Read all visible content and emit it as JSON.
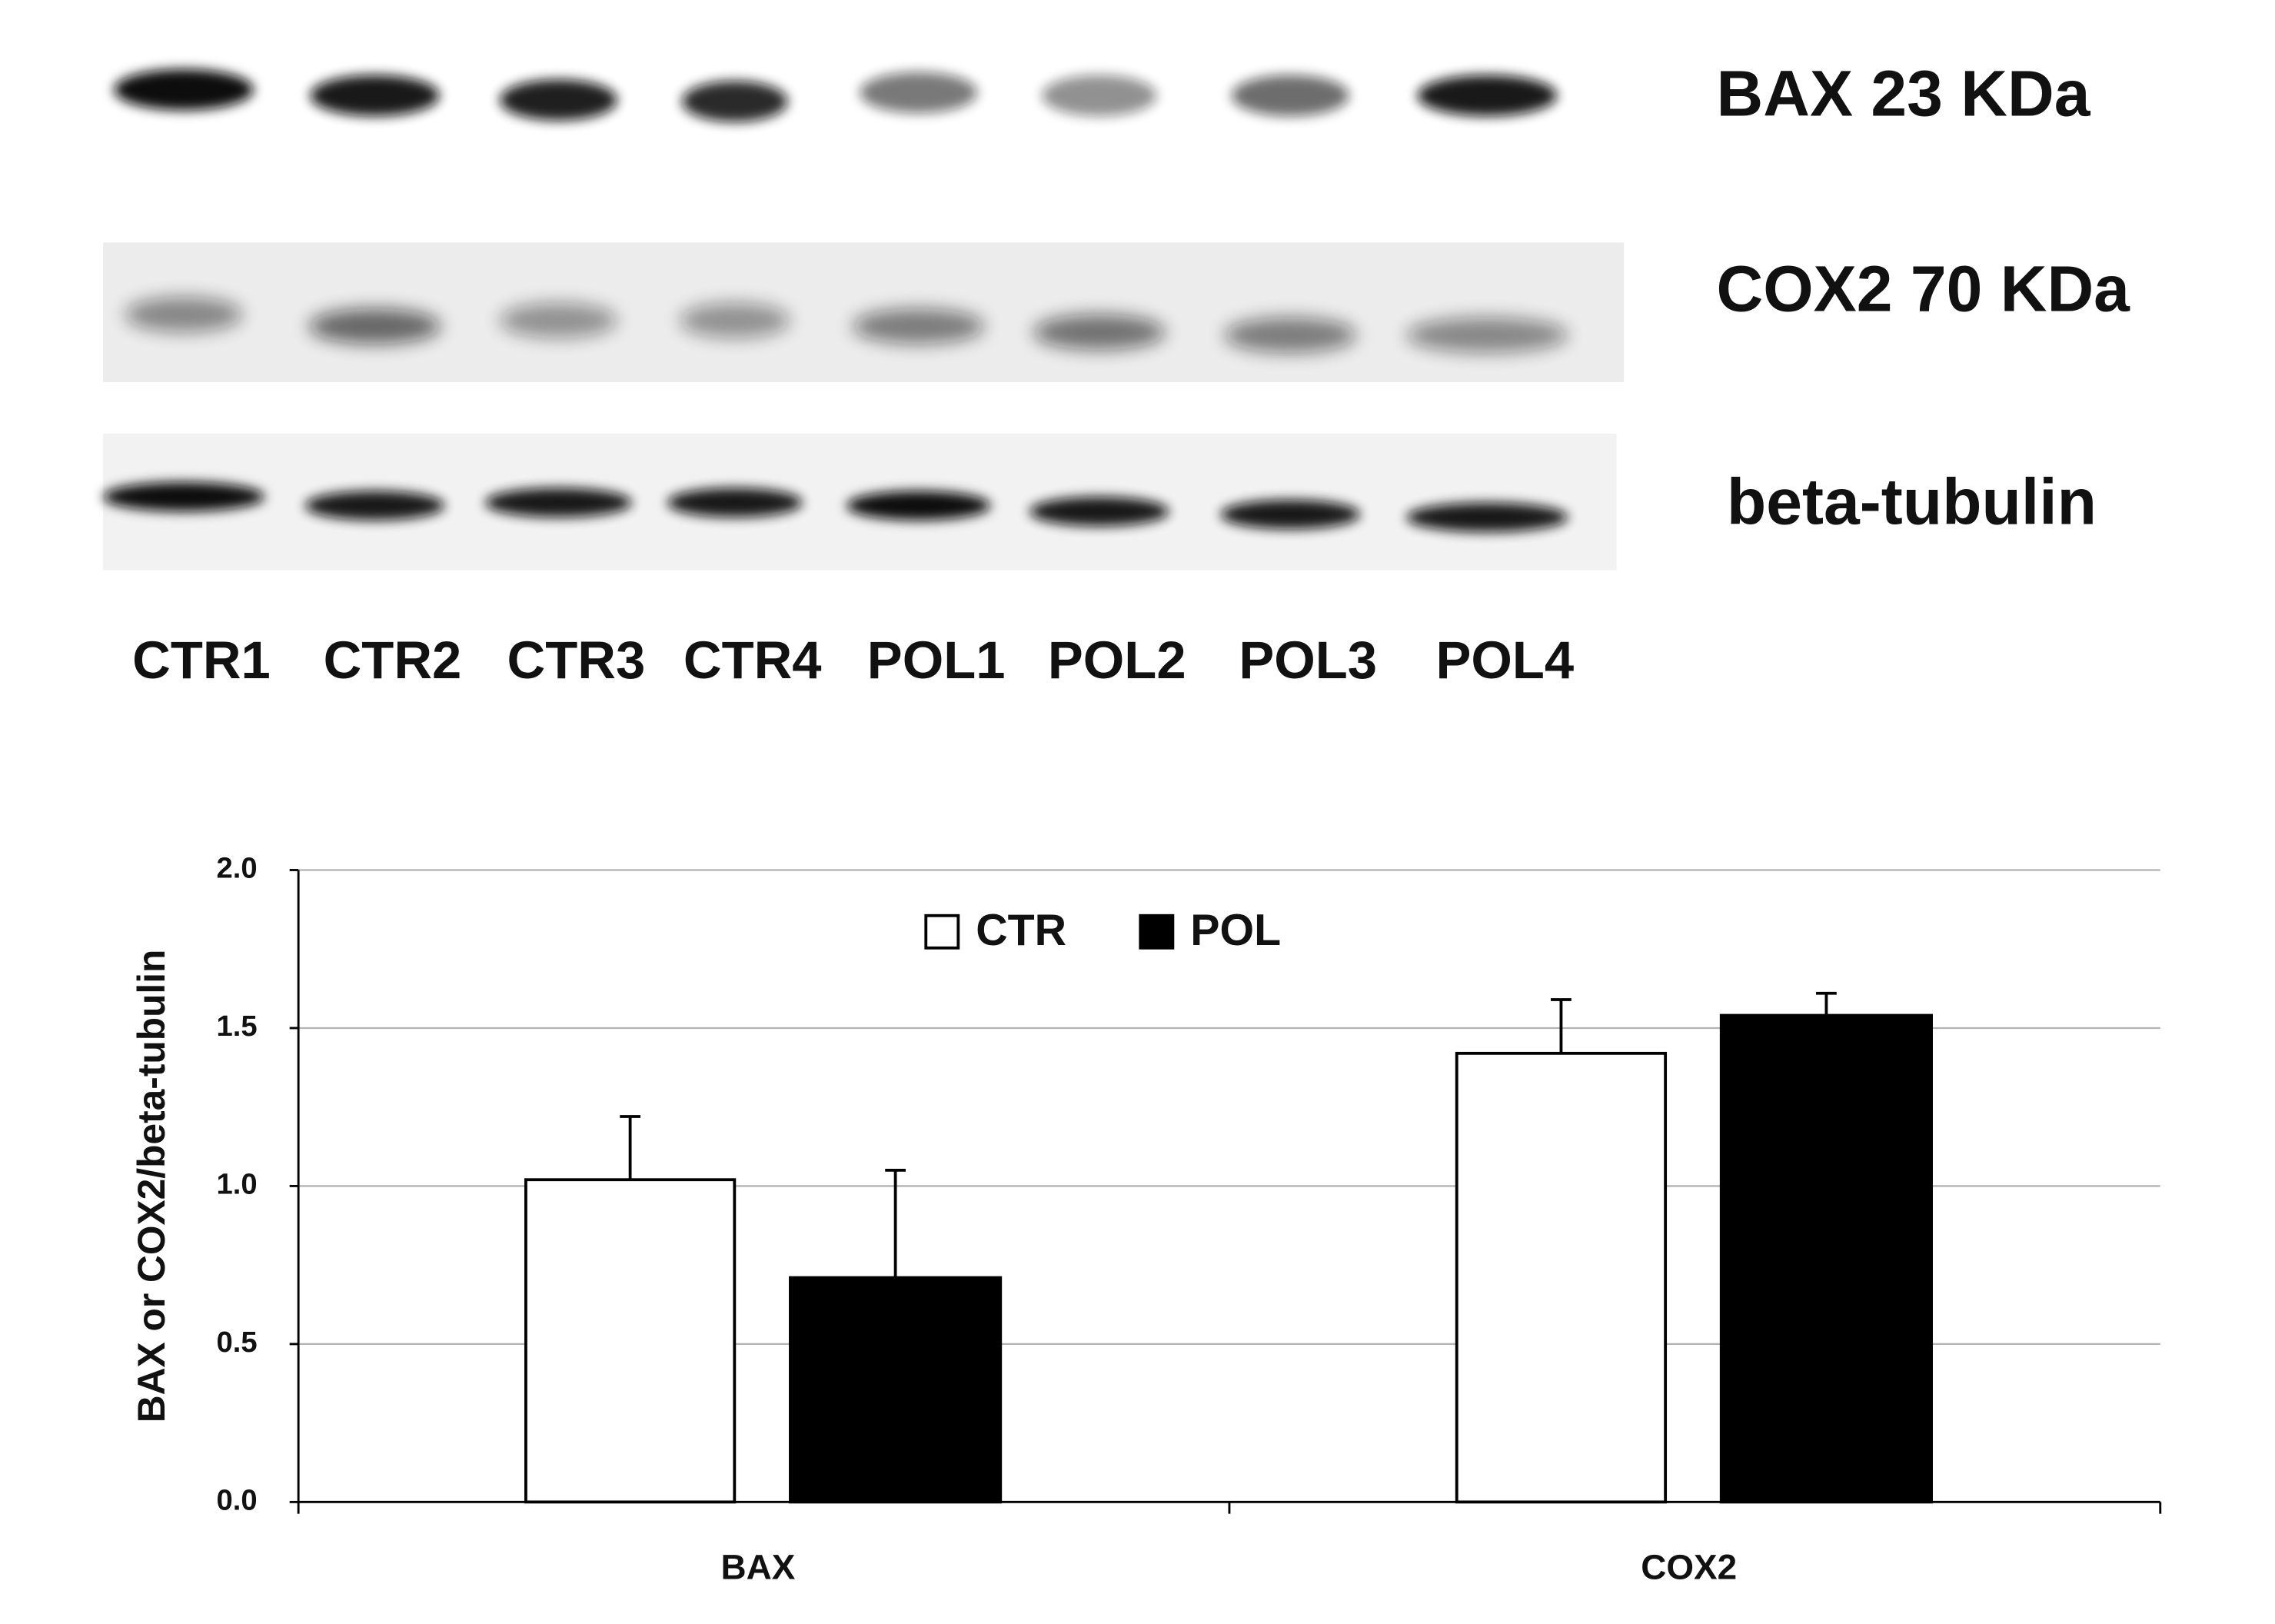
{
  "blot": {
    "bands": [
      "BAX 23 KDa",
      "COX2 70 KDa",
      "beta-tubulin"
    ],
    "lanes": [
      "CTR1",
      "CTR2",
      "CTR3",
      "CTR4",
      "POL1",
      "POL2",
      "POL3",
      "POL4"
    ]
  },
  "chart_data": {
    "type": "bar",
    "y_label": "BAX or COX2/beta-tubulin",
    "categories": [
      "BAX",
      "COX2"
    ],
    "series": [
      {
        "name": "CTR",
        "color": "#ffffff",
        "values": [
          1.02,
          1.42
        ],
        "errors": [
          0.2,
          0.17
        ]
      },
      {
        "name": "POL",
        "color": "#000000",
        "values": [
          0.71,
          1.54
        ],
        "errors": [
          0.34,
          0.07
        ]
      }
    ],
    "ylim": [
      0,
      2
    ],
    "yticks": [
      {
        "value": 0,
        "label": "0.0"
      },
      0.5,
      {
        "value": 1,
        "label": "1.0"
      },
      1.5,
      {
        "value": 2,
        "label": "2.0"
      }
    ],
    "grid": true,
    "legend": "top"
  }
}
